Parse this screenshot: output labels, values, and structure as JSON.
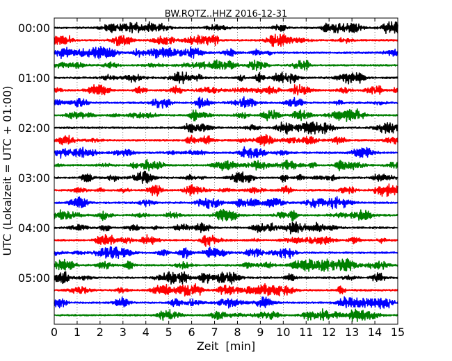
{
  "chart_data": {
    "type": "line",
    "title": "BW.ROTZ..HHZ 2016-12-31",
    "xlabel": "Zeit  [min]",
    "ylabel": "UTC (Lokalzeit = UTC + 01:00)",
    "xlim": [
      0,
      15
    ],
    "x_ticks": [
      "0",
      "1",
      "2",
      "3",
      "4",
      "5",
      "6",
      "7",
      "8",
      "9",
      "10",
      "11",
      "12",
      "13",
      "14",
      "15"
    ],
    "y_ticks": [
      "00:00",
      "01:00",
      "02:00",
      "03:00",
      "04:00",
      "05:00"
    ],
    "traces_per_hour": 4,
    "minutes_per_trace": 15,
    "trace_count": 24,
    "trace_colors": [
      "#000000",
      "#ff0000",
      "#0000ff",
      "#008000"
    ],
    "grid": "vertical dotted at each minute"
  }
}
